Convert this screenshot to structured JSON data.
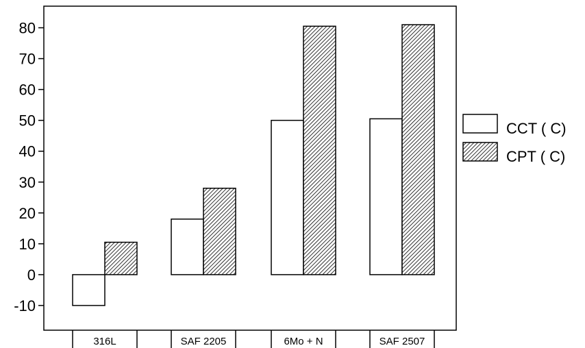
{
  "chart_data": {
    "type": "bar",
    "categories": [
      "316L",
      "SAF 2205",
      "6Mo + N",
      "SAF 2507"
    ],
    "series": [
      {
        "name": "CCT ( C)",
        "values": [
          -10,
          18,
          50,
          50.5
        ],
        "fill": "#ffffff",
        "pattern": "none"
      },
      {
        "name": "CPT ( C)",
        "values": [
          10.5,
          28,
          80.5,
          81
        ],
        "fill": "#ffffff",
        "pattern": "diagonal-hatch"
      }
    ],
    "ylim": [
      -18,
      87
    ],
    "yticks": [
      80,
      70,
      60,
      50,
      40,
      30,
      20,
      10,
      0,
      -10
    ],
    "ytick_labels": [
      "80",
      "70",
      "60",
      "50",
      "40",
      "30",
      "20",
      "10",
      "0",
      "-10"
    ],
    "title": "",
    "xlabel": "",
    "ylabel": "",
    "grid": false,
    "legend_position": "right",
    "colors": {
      "stroke": "#000000",
      "background": "#ffffff"
    }
  }
}
